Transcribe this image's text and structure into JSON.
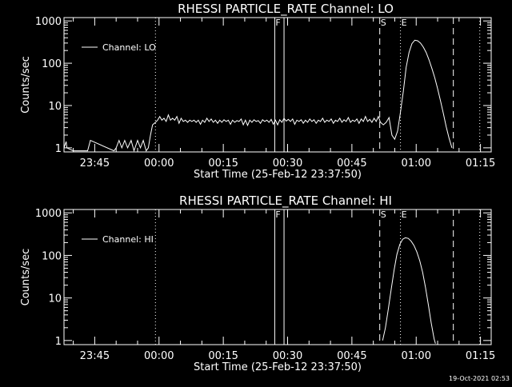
{
  "footer": "19-Oct-2021 02:53",
  "chart_data": [
    {
      "type": "line",
      "title": "RHESSI PARTICLE_RATE Channel: LO",
      "xlabel": "Start Time (25-Feb-12 23:37:50)",
      "ylabel": "Counts/sec",
      "xlim": [
        "23:37:50",
        "01:17:30"
      ],
      "ylim": [
        0.8,
        1200
      ],
      "ylog": true,
      "xtick_labels": [
        "23:45",
        "00:00",
        "00:15",
        "00:30",
        "00:45",
        "01:00",
        "01:15"
      ],
      "ytick_labels": [
        "1",
        "10",
        "100",
        "1000"
      ],
      "legend": {
        "label": "Channel: LO",
        "placement": "top-left"
      },
      "markers": [
        {
          "time": "23:59:10",
          "style": "dotted",
          "label": ""
        },
        {
          "time": "00:27:00",
          "style": "solid",
          "label": "F"
        },
        {
          "time": "00:29:10",
          "style": "solid",
          "label": ""
        },
        {
          "time": "00:51:30",
          "style": "dashed",
          "label": "S"
        },
        {
          "time": "00:56:20",
          "style": "dotted",
          "label": "E"
        },
        {
          "time": "01:08:40",
          "style": "dashed",
          "label": ""
        },
        {
          "time": "01:14:50",
          "style": "dotted",
          "label": ""
        }
      ],
      "series": [
        {
          "name": "Channel: LO",
          "x": [
            "23:37:50",
            "23:38:20",
            "23:38:30",
            "23:40:00",
            "23:43:20",
            "23:44:00",
            "23:49:30",
            "23:50:00",
            "23:50:40",
            "23:51:20",
            "23:52:00",
            "23:52:40",
            "23:53:30",
            "23:54:10",
            "23:55:00",
            "23:55:40",
            "23:56:20",
            "23:57:00",
            "23:57:30",
            "23:58:00",
            "23:58:30",
            "23:59:10",
            "23:59:40",
            "00:00:10",
            "00:00:40",
            "00:01:10",
            "00:01:40",
            "00:02:10",
            "00:02:40",
            "00:03:10",
            "00:03:40",
            "00:04:10",
            "00:04:40",
            "00:05:10",
            "00:05:40",
            "00:06:10",
            "00:06:40",
            "00:07:10",
            "00:07:40",
            "00:08:10",
            "00:08:40",
            "00:09:10",
            "00:09:40",
            "00:10:10",
            "00:10:40",
            "00:11:10",
            "00:11:40",
            "00:12:10",
            "00:12:40",
            "00:13:10",
            "00:13:40",
            "00:14:10",
            "00:14:40",
            "00:15:10",
            "00:15:40",
            "00:16:10",
            "00:16:40",
            "00:17:10",
            "00:17:40",
            "00:18:10",
            "00:18:40",
            "00:19:10",
            "00:19:40",
            "00:20:10",
            "00:20:40",
            "00:21:10",
            "00:21:40",
            "00:22:10",
            "00:22:40",
            "00:23:10",
            "00:23:40",
            "00:24:10",
            "00:24:40",
            "00:25:10",
            "00:25:40",
            "00:26:10",
            "00:26:40",
            "00:27:10",
            "00:27:40",
            "00:28:10",
            "00:28:40",
            "00:29:10",
            "00:29:40",
            "00:30:10",
            "00:30:40",
            "00:31:10",
            "00:31:40",
            "00:32:10",
            "00:32:40",
            "00:33:10",
            "00:33:40",
            "00:34:10",
            "00:34:40",
            "00:35:10",
            "00:35:40",
            "00:36:10",
            "00:36:40",
            "00:37:10",
            "00:37:40",
            "00:38:10",
            "00:38:40",
            "00:39:10",
            "00:39:40",
            "00:40:10",
            "00:40:40",
            "00:41:10",
            "00:41:40",
            "00:42:10",
            "00:42:40",
            "00:43:10",
            "00:43:40",
            "00:44:10",
            "00:44:40",
            "00:45:10",
            "00:45:40",
            "00:46:10",
            "00:46:40",
            "00:47:10",
            "00:47:40",
            "00:48:10",
            "00:48:40",
            "00:49:10",
            "00:49:40",
            "00:50:10",
            "00:50:40",
            "00:51:10",
            "00:51:40",
            "00:52:20",
            "00:53:00",
            "00:53:40",
            "00:54:20",
            "00:55:00",
            "00:55:40",
            "00:56:20",
            "00:57:00",
            "00:57:40",
            "00:58:20",
            "00:59:00",
            "00:59:40",
            "01:00:20",
            "01:01:00",
            "01:01:40",
            "01:02:20",
            "01:03:00",
            "01:03:40",
            "01:04:20",
            "01:05:00",
            "01:05:40",
            "01:06:20",
            "01:07:00",
            "01:07:40",
            "01:08:20"
          ],
          "y": [
            1,
            1.4,
            1,
            0.85,
            0.85,
            1.5,
            0.85,
            1,
            1.5,
            1,
            1.5,
            1,
            1.5,
            0.85,
            1.5,
            1,
            1.5,
            0.85,
            1,
            2,
            3.5,
            4,
            4.5,
            5.5,
            4.5,
            5,
            4.2,
            6,
            4.5,
            5,
            4.5,
            5.5,
            3.8,
            5,
            4.2,
            4.5,
            4,
            4.5,
            4.2,
            4.5,
            4,
            4.5,
            3.6,
            4.5,
            4,
            5,
            4.2,
            4.8,
            4,
            4.5,
            3.8,
            4.5,
            4,
            4.6,
            4.2,
            4.5,
            3.6,
            4.5,
            4,
            4.4,
            4.2,
            4.8,
            3.5,
            4.5,
            3.4,
            4.5,
            4,
            4.6,
            4.2,
            4.4,
            3.8,
            4.6,
            4.2,
            4.5,
            4,
            4.7,
            3.6,
            4.5,
            3.5,
            4.6,
            4,
            5,
            4.3,
            4.7,
            4.2,
            4.8,
            3.6,
            4.5,
            4.2,
            4.6,
            3.8,
            4.5,
            4,
            4.8,
            4.2,
            4.6,
            3.8,
            4.5,
            4.2,
            5,
            4,
            4.5,
            4.2,
            4.8,
            3.8,
            4.5,
            4.2,
            5,
            4,
            4.6,
            4.2,
            5.2,
            4,
            4.5,
            4.2,
            4.8,
            3.8,
            4.8,
            4.2,
            5.5,
            4.2,
            4.7,
            4,
            5,
            4.2,
            5.5,
            4,
            3.5,
            4,
            5.2,
            2,
            1.6,
            2.5,
            7,
            22,
            80,
            180,
            290,
            350,
            340,
            300,
            240,
            180,
            120,
            75,
            45,
            25,
            13,
            6.5,
            3.2,
            1.7,
            1
          ]
        }
      ]
    },
    {
      "type": "line",
      "title": "RHESSI PARTICLE_RATE Channel: HI",
      "xlabel": "Start Time (25-Feb-12 23:37:50)",
      "ylabel": "Counts/sec",
      "xlim": [
        "23:37:50",
        "01:17:30"
      ],
      "ylim": [
        0.8,
        1200
      ],
      "ylog": true,
      "xtick_labels": [
        "23:45",
        "00:00",
        "00:15",
        "00:30",
        "00:45",
        "01:00",
        "01:15"
      ],
      "ytick_labels": [
        "1",
        "10",
        "100",
        "1000"
      ],
      "legend": {
        "label": "Channel: HI",
        "placement": "top-left"
      },
      "markers": [
        {
          "time": "23:59:10",
          "style": "dotted",
          "label": ""
        },
        {
          "time": "00:27:00",
          "style": "solid",
          "label": "F"
        },
        {
          "time": "00:29:10",
          "style": "solid",
          "label": ""
        },
        {
          "time": "00:51:30",
          "style": "dashed",
          "label": "S"
        },
        {
          "time": "00:56:20",
          "style": "dotted",
          "label": "E"
        },
        {
          "time": "01:08:40",
          "style": "dashed",
          "label": ""
        },
        {
          "time": "01:14:50",
          "style": "dotted",
          "label": ""
        }
      ],
      "series": [
        {
          "name": "Channel: HI",
          "x": [
            "00:52:10",
            "00:52:50",
            "00:53:30",
            "00:54:10",
            "00:54:50",
            "00:55:30",
            "00:56:10",
            "00:56:50",
            "00:57:30",
            "00:58:10",
            "00:58:50",
            "00:59:30",
            "01:00:10",
            "01:00:50",
            "01:01:30",
            "01:02:10",
            "01:02:50",
            "01:03:30",
            "01:04:10",
            "01:04:30"
          ],
          "y": [
            1,
            2,
            5.5,
            16,
            45,
            105,
            180,
            240,
            260,
            250,
            215,
            170,
            120,
            75,
            40,
            18,
            7,
            2.6,
            1.1,
            0.85
          ]
        }
      ]
    }
  ]
}
